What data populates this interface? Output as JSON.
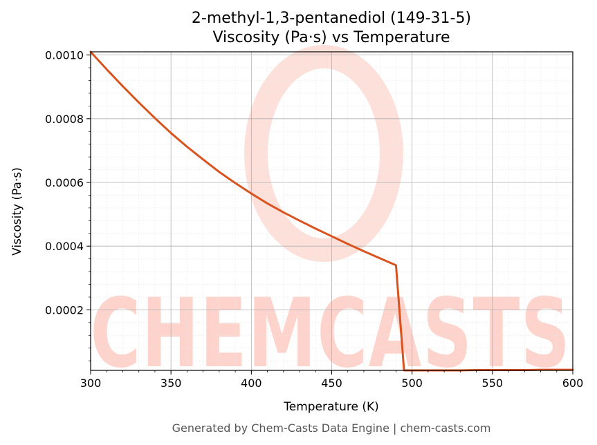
{
  "chart_data": {
    "type": "line",
    "title": "2-methyl-1,3-pentanediol (149-31-5)",
    "subtitle": "Viscosity (Pa·s) vs Temperature",
    "xlabel": "Temperature (K)",
    "ylabel": "Viscosity (Pa·s)",
    "xlim": [
      300,
      600
    ],
    "ylim": [
      1e-05,
      0.00101
    ],
    "x_ticks": [
      "300",
      "350",
      "400",
      "450",
      "500",
      "550",
      "600"
    ],
    "y_ticks": [
      "0.0002",
      "0.0004",
      "0.0006",
      "0.0008",
      "0.0010"
    ],
    "grid": true,
    "series": [
      {
        "color": "#d9531e",
        "x": [
          300,
          310,
          320,
          330,
          340,
          350,
          360,
          370,
          380,
          390,
          400,
          410,
          420,
          430,
          440,
          450,
          460,
          470,
          480,
          490,
          495,
          500,
          510,
          520,
          530,
          540,
          550,
          560,
          570,
          580,
          590,
          600
        ],
        "y": [
          0.00101,
          0.000955,
          0.000902,
          0.000851,
          0.000802,
          0.000755,
          0.000712,
          0.000672,
          0.000633,
          0.000598,
          0.000565,
          0.000534,
          0.000506,
          0.00048,
          0.000455,
          0.000431,
          0.000407,
          0.000384,
          0.000362,
          0.00034,
          1e-05,
          1e-05,
          1e-05,
          1e-05,
          1e-05,
          1.1e-05,
          1.1e-05,
          1.1e-05,
          1.1e-05,
          1.2e-05,
          1.2e-05,
          1.2e-05
        ]
      }
    ]
  },
  "watermark": "CHEMCASTS",
  "footer": "Generated by Chem-Casts Data Engine | chem-casts.com"
}
